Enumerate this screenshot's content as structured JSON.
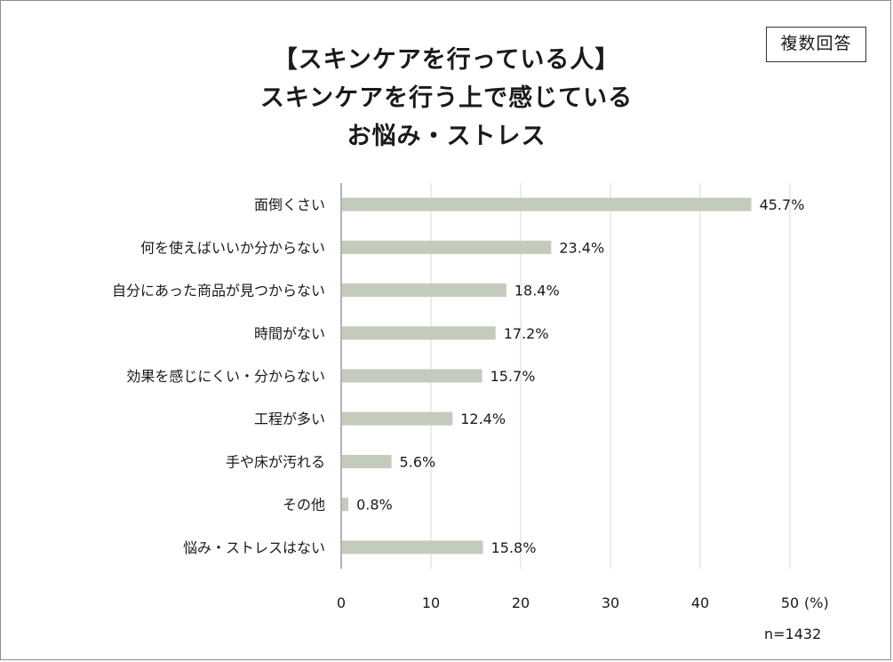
{
  "colors": {
    "bar": "#c3cbbc",
    "grid": "#d9d9d9",
    "axis": "#7f7f7f",
    "text": "#1a1a1a"
  },
  "badge": "複数回答",
  "sample_size": "n=1432",
  "chart_data": {
    "type": "bar",
    "orientation": "horizontal",
    "title": [
      "【スキンケアを行っている人】",
      "スキンケアを行う上で感じている",
      "お悩み・ストレス"
    ],
    "categories": [
      "面倒くさい",
      "何を使えばいいか分からない",
      "自分にあった商品が見つからない",
      "時間がない",
      "効果を感じにくい・分からない",
      "工程が多い",
      "手や床が汚れる",
      "その他",
      "悩み・ストレスはない"
    ],
    "values": [
      45.7,
      23.4,
      18.4,
      17.2,
      15.7,
      12.4,
      5.6,
      0.8,
      15.8
    ],
    "value_labels": [
      "45.7%",
      "23.4%",
      "18.4%",
      "17.2%",
      "15.7%",
      "12.4%",
      "5.6%",
      "0.8%",
      "15.8%"
    ],
    "xlim": [
      0,
      50
    ],
    "xticks": [
      0,
      10,
      20,
      30,
      40,
      50
    ],
    "xtick_labels": [
      "0",
      "10",
      "20",
      "30",
      "40",
      "50"
    ],
    "xlabel": "(%)",
    "ylabel": "",
    "grid": true,
    "legend": "none"
  }
}
